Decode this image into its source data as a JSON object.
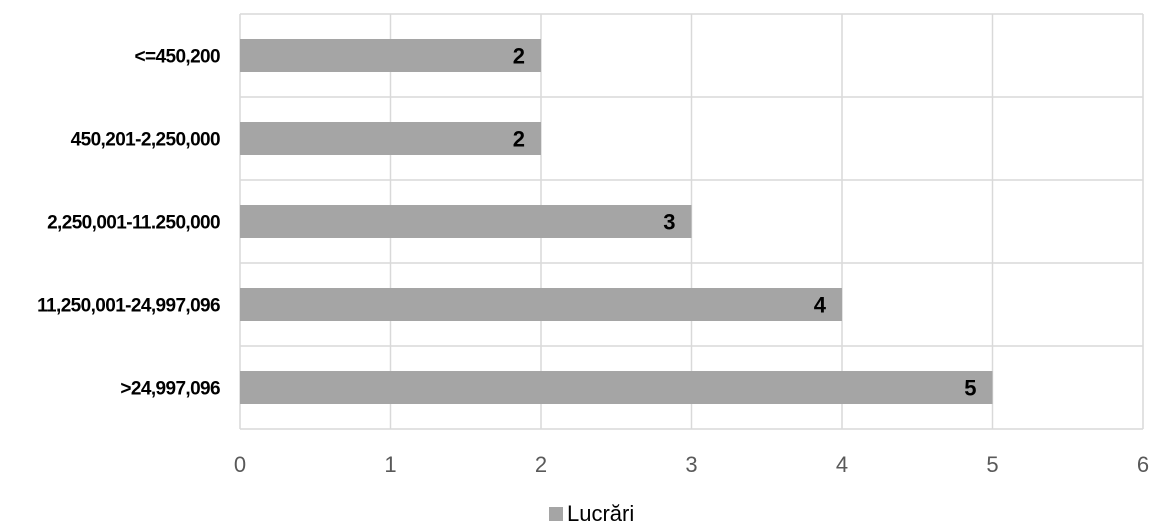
{
  "chart_data": {
    "type": "bar",
    "orientation": "horizontal",
    "categories": [
      "<=450,200",
      "450,201-2,250,000",
      "2,250,001-11.250,000",
      "11,250,001-24,997,096",
      ">24,997,096"
    ],
    "series": [
      {
        "name": "Lucrări",
        "values": [
          2,
          2,
          3,
          4,
          5
        ],
        "color": "#a5a5a5"
      }
    ],
    "xlim": [
      0,
      6
    ],
    "x_ticks": [
      0,
      1,
      2,
      3,
      4,
      5,
      6
    ],
    "data_labels": true,
    "grid": true,
    "legend_position": "bottom",
    "title": "",
    "xlabel": "",
    "ylabel": ""
  }
}
